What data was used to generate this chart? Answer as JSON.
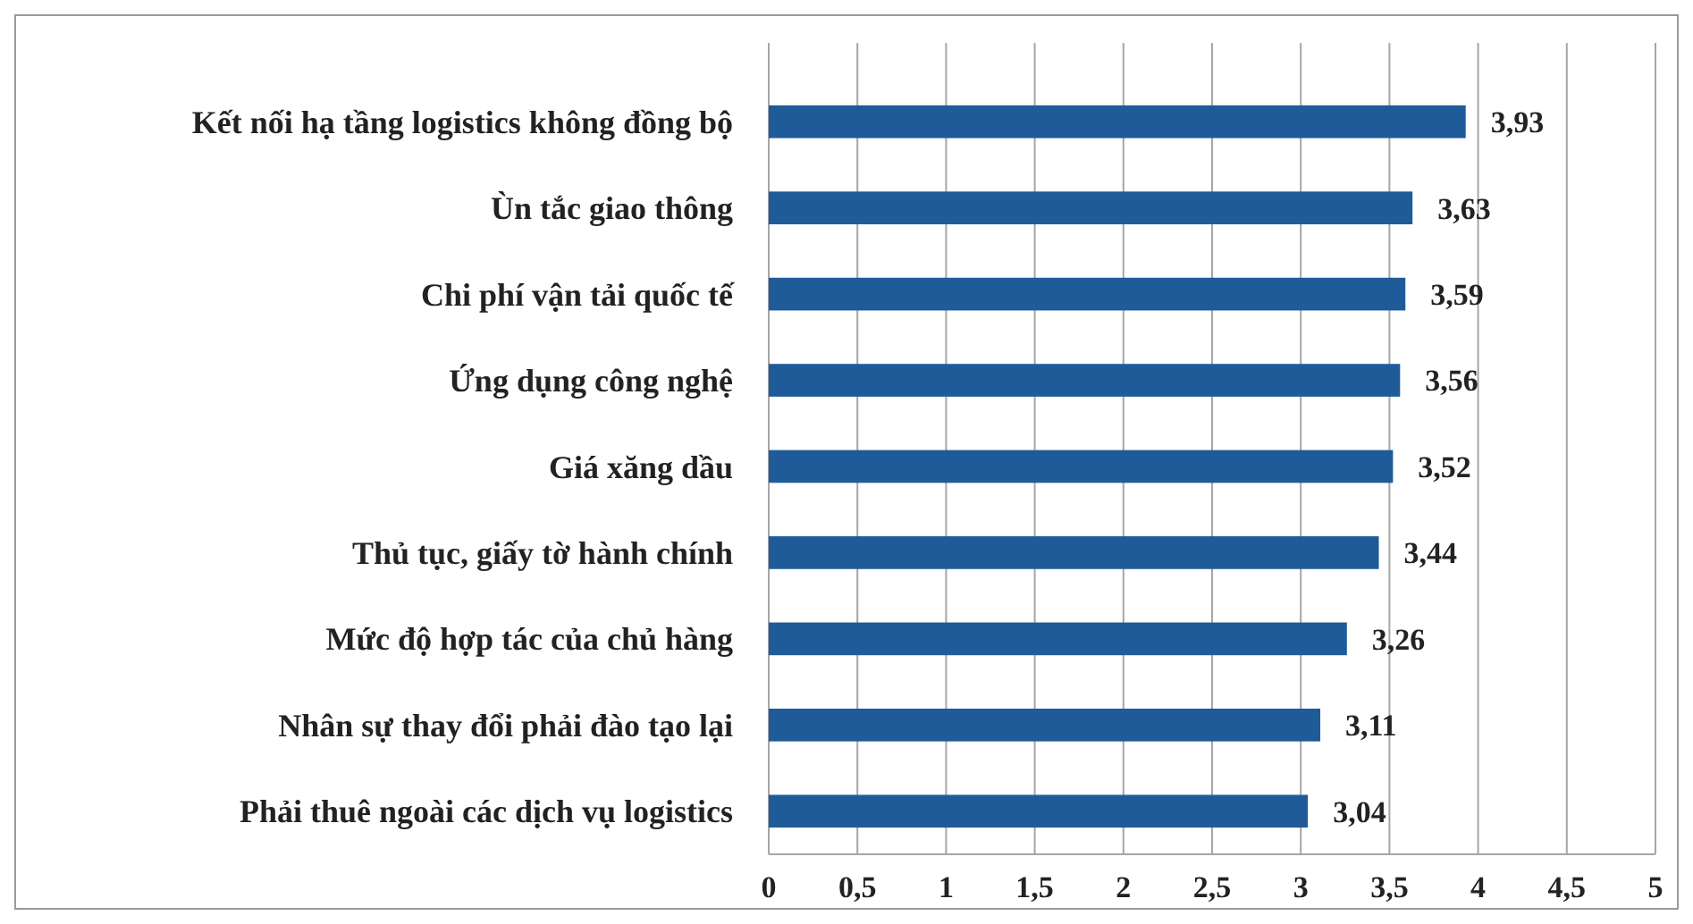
{
  "chart_data": {
    "type": "bar",
    "orientation": "horizontal",
    "categories": [
      "Kết nối hạ tầng logistics không đồng bộ",
      "Ùn tắc giao thông",
      "Chi phí vận tải quốc tế",
      "Ứng dụng công nghệ",
      "Giá xăng dầu",
      "Thủ tục, giấy tờ hành chính",
      "Mức độ hợp tác của chủ hàng",
      "Nhân sự thay đổi phải đào tạo lại",
      "Phải thuê ngoài các dịch vụ logistics"
    ],
    "values": [
      3.93,
      3.63,
      3.59,
      3.56,
      3.52,
      3.44,
      3.26,
      3.11,
      3.04
    ],
    "value_labels": [
      "3,93",
      "3,63",
      "3,59",
      "3,56",
      "3,52",
      "3,44",
      "3,26",
      "3,11",
      "3,04"
    ],
    "color": "#1f5b99",
    "xlim": [
      0,
      5
    ],
    "xticks": [
      0,
      {
        "value": 0.5,
        "label": "0,5"
      },
      1,
      {
        "value": 1.5,
        "label": "1,5"
      },
      2,
      {
        "value": 2.5,
        "label": "2,5"
      },
      3,
      {
        "value": 3.5,
        "label": "3,5"
      },
      4,
      {
        "value": 4.5,
        "label": "4,5"
      },
      5
    ],
    "grid": "x"
  }
}
